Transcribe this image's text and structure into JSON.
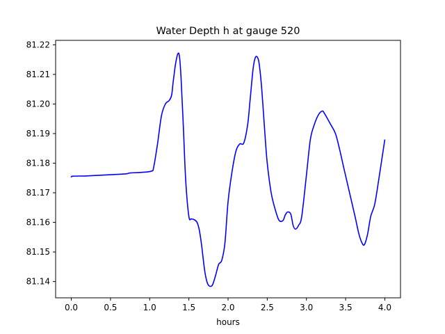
{
  "chart_data": {
    "type": "line",
    "title": "Water Depth h at gauge 520",
    "xlabel": "hours",
    "ylabel": "",
    "xlim": [
      -0.2,
      4.2
    ],
    "ylim": [
      81.1345,
      81.2215
    ],
    "xticks": [
      0.0,
      0.5,
      1.0,
      1.5,
      2.0,
      2.5,
      3.0,
      3.5,
      4.0
    ],
    "xtick_labels": [
      "0.0",
      "0.5",
      "1.0",
      "1.5",
      "2.0",
      "2.5",
      "3.0",
      "3.5",
      "4.0"
    ],
    "yticks": [
      81.14,
      81.15,
      81.16,
      81.17,
      81.18,
      81.19,
      81.2,
      81.21,
      81.22
    ],
    "ytick_labels": [
      "81.14",
      "81.15",
      "81.16",
      "81.17",
      "81.18",
      "81.19",
      "81.20",
      "81.21",
      "81.22"
    ],
    "grid": false,
    "series": [
      {
        "color": "#0000ff",
        "x": [
          0.0,
          0.02,
          0.2,
          0.5,
          0.7,
          0.75,
          0.9,
          1.02,
          1.05,
          1.1,
          1.15,
          1.2,
          1.25,
          1.28,
          1.3,
          1.33,
          1.36,
          1.38,
          1.4,
          1.43,
          1.46,
          1.5,
          1.53,
          1.56,
          1.6,
          1.63,
          1.66,
          1.7,
          1.73,
          1.76,
          1.8,
          1.84,
          1.88,
          1.92,
          1.96,
          2.0,
          2.05,
          2.1,
          2.15,
          2.2,
          2.25,
          2.28,
          2.32,
          2.35,
          2.38,
          2.4,
          2.43,
          2.47,
          2.5,
          2.55,
          2.6,
          2.65,
          2.7,
          2.73,
          2.76,
          2.8,
          2.83,
          2.86,
          2.9,
          2.94,
          3.0,
          3.05,
          3.1,
          3.15,
          3.2,
          3.23,
          3.3,
          3.37,
          3.42,
          3.48,
          3.55,
          3.62,
          3.67,
          3.71,
          3.74,
          3.78,
          3.82,
          3.87,
          3.92,
          3.96,
          4.0
        ],
        "y": [
          81.1752,
          81.1756,
          81.1757,
          81.1761,
          81.1764,
          81.1767,
          81.1769,
          81.1773,
          81.1785,
          81.1865,
          81.196,
          81.2,
          81.2012,
          81.203,
          81.2075,
          81.2135,
          81.217,
          81.216,
          81.209,
          81.192,
          81.174,
          81.162,
          81.1612,
          81.161,
          81.1602,
          81.1578,
          81.1528,
          81.144,
          81.14,
          81.1385,
          81.1388,
          81.142,
          81.1458,
          81.1472,
          81.153,
          81.167,
          81.177,
          81.184,
          81.1865,
          81.1868,
          81.193,
          81.201,
          81.212,
          81.2158,
          81.2155,
          81.213,
          81.205,
          81.19,
          81.18,
          81.17,
          81.1645,
          81.1607,
          81.1606,
          81.1625,
          81.1635,
          81.1628,
          81.159,
          81.1577,
          81.159,
          81.162,
          81.176,
          81.188,
          81.193,
          81.1962,
          81.1976,
          81.1968,
          81.1935,
          81.19,
          81.185,
          81.178,
          81.17,
          81.162,
          81.156,
          81.153,
          81.1525,
          81.156,
          81.162,
          81.166,
          81.174,
          81.181,
          81.188
        ]
      }
    ]
  }
}
